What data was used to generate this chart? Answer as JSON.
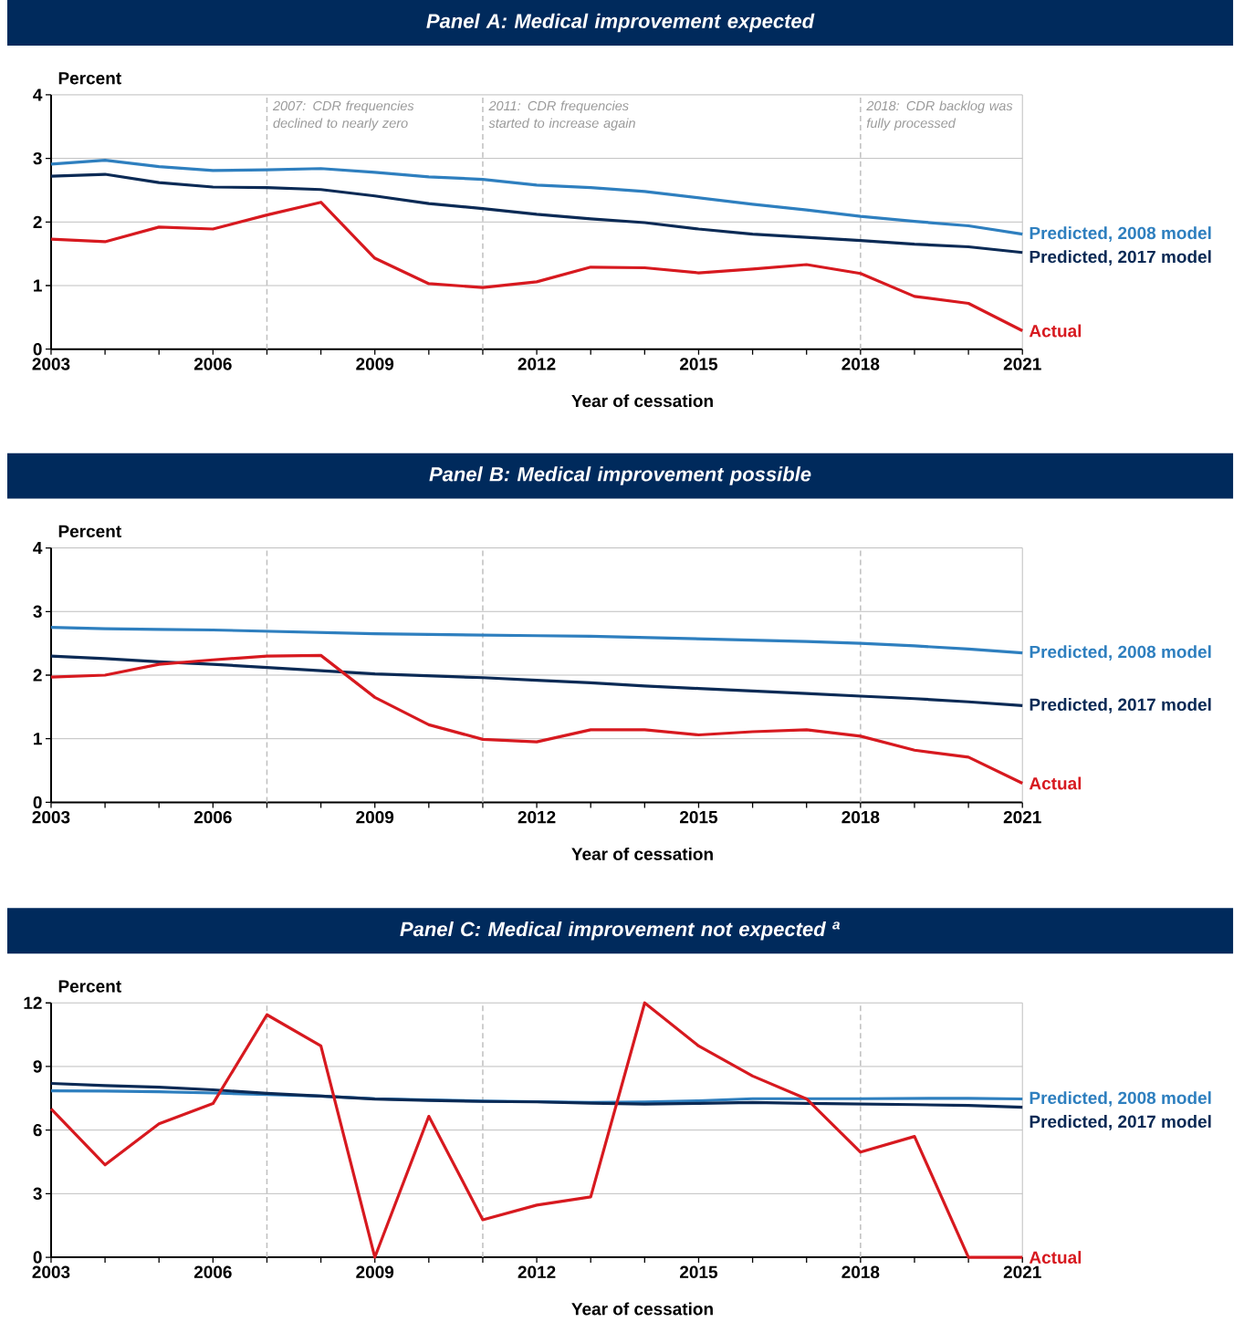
{
  "chart_data": [
    {
      "type": "line",
      "title": "Panel A: Medical improvement expected",
      "xlabel": "Year of cessation",
      "ylabel": "Percent",
      "x": [
        2003,
        2004,
        2005,
        2006,
        2007,
        2008,
        2009,
        2010,
        2011,
        2012,
        2013,
        2014,
        2015,
        2016,
        2017,
        2018,
        2019,
        2020,
        2021
      ],
      "series": [
        {
          "name": "Predicted, 2008 model",
          "color": "#2e7fbf",
          "values": [
            2.91,
            2.97,
            2.87,
            2.81,
            2.82,
            2.84,
            2.78,
            2.71,
            2.67,
            2.58,
            2.54,
            2.48,
            2.38,
            2.28,
            2.19,
            2.09,
            2.01,
            1.94,
            1.81
          ]
        },
        {
          "name": "Predicted, 2017 model",
          "color": "#0b2a55",
          "values": [
            2.72,
            2.75,
            2.62,
            2.55,
            2.54,
            2.51,
            2.41,
            2.29,
            2.21,
            2.12,
            2.05,
            1.99,
            1.89,
            1.81,
            1.76,
            1.71,
            1.65,
            1.61,
            1.52
          ]
        },
        {
          "name": "Actual",
          "color": "#d7191f",
          "values": [
            1.73,
            1.69,
            1.92,
            1.89,
            2.11,
            2.31,
            1.43,
            1.03,
            0.97,
            1.06,
            1.29,
            1.28,
            1.2,
            1.26,
            1.33,
            1.19,
            0.83,
            0.72,
            0.29
          ]
        }
      ],
      "xlim": [
        2003,
        2021
      ],
      "ylim": [
        0,
        4
      ],
      "xticks": [
        2003,
        {
          "value": 2004,
          "label": null
        },
        {
          "value": 2005,
          "label": null
        },
        2006,
        {
          "value": 2007,
          "label": null
        },
        {
          "value": 2008,
          "label": null
        },
        2009,
        {
          "value": 2010,
          "label": null
        },
        {
          "value": 2011,
          "label": null
        },
        2012,
        {
          "value": 2013,
          "label": null
        },
        {
          "value": 2014,
          "label": null
        },
        2015,
        {
          "value": 2016,
          "label": null
        },
        {
          "value": 2017,
          "label": null
        },
        2018,
        {
          "value": 2019,
          "label": null
        },
        {
          "value": 2020,
          "label": null
        },
        2021
      ],
      "yticks": [
        0,
        1,
        2,
        3,
        4
      ],
      "grid": "y",
      "ref_lines": [
        {
          "axis": "x",
          "value": 2007,
          "label": "2007: CDR frequencies declined to nearly zero",
          "color": "#bfbfbf",
          "line_style": "dashed"
        },
        {
          "axis": "x",
          "value": 2011,
          "label": "2011: CDR frequencies started to increase again",
          "color": "#bfbfbf",
          "line_style": "dashed"
        },
        {
          "axis": "x",
          "value": 2018,
          "label": "2018: CDR backlog was fully processed",
          "color": "#bfbfbf",
          "line_style": "dashed"
        }
      ]
    },
    {
      "type": "line",
      "title": "Panel B: Medical improvement possible",
      "xlabel": "Year of cessation",
      "ylabel": "Percent",
      "x": [
        2003,
        2004,
        2005,
        2006,
        2007,
        2008,
        2009,
        2010,
        2011,
        2012,
        2013,
        2014,
        2015,
        2016,
        2017,
        2018,
        2019,
        2020,
        2021
      ],
      "series": [
        {
          "name": "Predicted, 2008 model",
          "color": "#2e7fbf",
          "values": [
            2.75,
            2.73,
            2.72,
            2.71,
            2.69,
            2.67,
            2.65,
            2.64,
            2.63,
            2.62,
            2.61,
            2.59,
            2.57,
            2.55,
            2.53,
            2.5,
            2.46,
            2.41,
            2.35
          ]
        },
        {
          "name": "Predicted, 2017 model",
          "color": "#0b2a55",
          "values": [
            2.3,
            2.26,
            2.21,
            2.17,
            2.12,
            2.07,
            2.02,
            1.99,
            1.96,
            1.92,
            1.88,
            1.83,
            1.79,
            1.75,
            1.71,
            1.67,
            1.63,
            1.58,
            1.52
          ]
        },
        {
          "name": "Actual",
          "color": "#d7191f",
          "values": [
            1.97,
            2.0,
            2.17,
            2.24,
            2.3,
            2.31,
            1.65,
            1.22,
            0.99,
            0.95,
            1.14,
            1.14,
            1.06,
            1.11,
            1.14,
            1.04,
            0.82,
            0.71,
            0.3
          ]
        }
      ],
      "xlim": [
        2003,
        2021
      ],
      "ylim": [
        0,
        4
      ],
      "xticks": [
        2003,
        {
          "value": 2004,
          "label": null
        },
        {
          "value": 2005,
          "label": null
        },
        2006,
        {
          "value": 2007,
          "label": null
        },
        {
          "value": 2008,
          "label": null
        },
        2009,
        {
          "value": 2010,
          "label": null
        },
        {
          "value": 2011,
          "label": null
        },
        2012,
        {
          "value": 2013,
          "label": null
        },
        {
          "value": 2014,
          "label": null
        },
        2015,
        {
          "value": 2016,
          "label": null
        },
        {
          "value": 2017,
          "label": null
        },
        2018,
        {
          "value": 2019,
          "label": null
        },
        {
          "value": 2020,
          "label": null
        },
        2021
      ],
      "yticks": [
        0,
        1,
        2,
        3,
        4
      ],
      "grid": "y",
      "ref_lines": [
        {
          "axis": "x",
          "value": 2007,
          "color": "#bfbfbf",
          "line_style": "dashed"
        },
        {
          "axis": "x",
          "value": 2011,
          "color": "#bfbfbf",
          "line_style": "dashed"
        },
        {
          "axis": "x",
          "value": 2018,
          "color": "#bfbfbf",
          "line_style": "dashed"
        }
      ]
    },
    {
      "type": "line",
      "title": "Panel C: Medical improvement not expected $^{a}$",
      "xlabel": "Year of cessation",
      "ylabel": "Percent",
      "x": [
        2003,
        2004,
        2005,
        2006,
        2007,
        2008,
        2009,
        2010,
        2011,
        2012,
        2013,
        2014,
        2015,
        2016,
        2017,
        2018,
        2019,
        2020,
        2021
      ],
      "series": [
        {
          "name": "Predicted, 2008 model",
          "color": "#2e7fbf",
          "values": [
            7.85,
            7.84,
            7.81,
            7.75,
            7.68,
            7.6,
            7.48,
            7.42,
            7.37,
            7.34,
            7.3,
            7.32,
            7.38,
            7.48,
            7.48,
            7.48,
            7.49,
            7.5,
            7.47
          ]
        },
        {
          "name": "Predicted, 2017 model",
          "color": "#0b2a55",
          "values": [
            8.2,
            8.1,
            8.02,
            7.9,
            7.73,
            7.6,
            7.46,
            7.4,
            7.35,
            7.33,
            7.27,
            7.23,
            7.26,
            7.3,
            7.26,
            7.23,
            7.2,
            7.16,
            7.08
          ]
        },
        {
          "name": "Actual",
          "color": "#d7191f",
          "values": [
            7.0,
            4.36,
            6.3,
            7.25,
            11.44,
            9.97,
            0,
            6.65,
            1.77,
            2.46,
            2.85,
            12.0,
            9.97,
            8.55,
            7.47,
            4.96,
            5.7,
            0,
            0
          ]
        }
      ],
      "xlim": [
        2003,
        2021
      ],
      "ylim": [
        0,
        12
      ],
      "xticks": [
        2003,
        {
          "value": 2004,
          "label": null
        },
        {
          "value": 2005,
          "label": null
        },
        2006,
        {
          "value": 2007,
          "label": null
        },
        {
          "value": 2008,
          "label": null
        },
        2009,
        {
          "value": 2010,
          "label": null
        },
        {
          "value": 2011,
          "label": null
        },
        2012,
        {
          "value": 2013,
          "label": null
        },
        {
          "value": 2014,
          "label": null
        },
        2015,
        {
          "value": 2016,
          "label": null
        },
        {
          "value": 2017,
          "label": null
        },
        2018,
        {
          "value": 2019,
          "label": null
        },
        {
          "value": 2020,
          "label": null
        },
        2021
      ],
      "yticks": [
        0,
        3,
        6,
        9,
        12
      ],
      "grid": "y",
      "ref_lines": [
        {
          "axis": "x",
          "value": 2007,
          "color": "#bfbfbf",
          "line_style": "dashed"
        },
        {
          "axis": "x",
          "value": 2011,
          "color": "#bfbfbf",
          "line_style": "dashed"
        },
        {
          "axis": "x",
          "value": 2018,
          "color": "#bfbfbf",
          "line_style": "dashed"
        }
      ]
    }
  ]
}
